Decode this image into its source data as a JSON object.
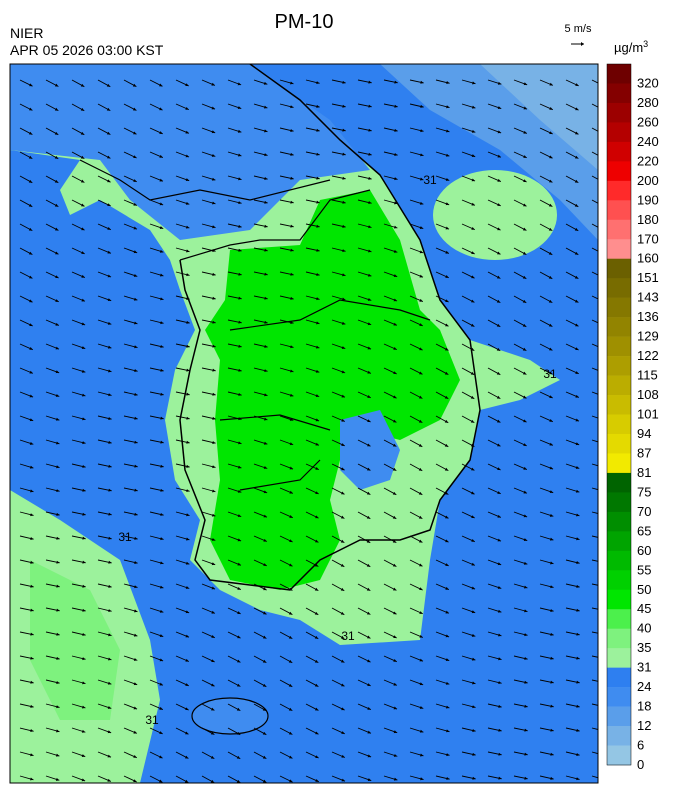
{
  "header": {
    "agency": "NIER",
    "title": "PM-10",
    "timestamp": "APR 05 2026 03:00 KST",
    "wind_scale": "5 m/s"
  },
  "legend": {
    "unit": "µg/m",
    "unit_exponent": "3",
    "levels": [
      {
        "value": 320,
        "color": "#6e0000"
      },
      {
        "value": 280,
        "color": "#840000"
      },
      {
        "value": 260,
        "color": "#9c0000"
      },
      {
        "value": 240,
        "color": "#b40000"
      },
      {
        "value": 220,
        "color": "#d00000"
      },
      {
        "value": 200,
        "color": "#ee0000"
      },
      {
        "value": 190,
        "color": "#ff2a2a"
      },
      {
        "value": 180,
        "color": "#ff5050"
      },
      {
        "value": 170,
        "color": "#ff7070"
      },
      {
        "value": 160,
        "color": "#ff8e8e"
      },
      {
        "value": 151,
        "color": "#6b6000"
      },
      {
        "value": 143,
        "color": "#786c00"
      },
      {
        "value": 136,
        "color": "#857800"
      },
      {
        "value": 129,
        "color": "#928400"
      },
      {
        "value": 122,
        "color": "#9f9000"
      },
      {
        "value": 115,
        "color": "#ad9e00"
      },
      {
        "value": 108,
        "color": "#bbad00"
      },
      {
        "value": 101,
        "color": "#c9bc00"
      },
      {
        "value": 94,
        "color": "#d7cc00"
      },
      {
        "value": 87,
        "color": "#e4da00"
      },
      {
        "value": 81,
        "color": "#f2ea00"
      },
      {
        "value": 75,
        "color": "#006400"
      },
      {
        "value": 70,
        "color": "#007800"
      },
      {
        "value": 65,
        "color": "#008e00"
      },
      {
        "value": 60,
        "color": "#00a400"
      },
      {
        "value": 55,
        "color": "#00ba00"
      },
      {
        "value": 50,
        "color": "#00d000"
      },
      {
        "value": 45,
        "color": "#00e600"
      },
      {
        "value": 40,
        "color": "#4cf04c"
      },
      {
        "value": 35,
        "color": "#7ef27e"
      },
      {
        "value": 31,
        "color": "#9cf29c"
      },
      {
        "value": 24,
        "color": "#2e7ff0"
      },
      {
        "value": 18,
        "color": "#3f8cf0"
      },
      {
        "value": 12,
        "color": "#5a9eea"
      },
      {
        "value": 6,
        "color": "#78b2e6"
      },
      {
        "value": 0,
        "color": "#94c6e4"
      }
    ]
  },
  "map": {
    "contour_labels": [
      "31",
      "31",
      "31",
      "31",
      "31"
    ]
  }
}
